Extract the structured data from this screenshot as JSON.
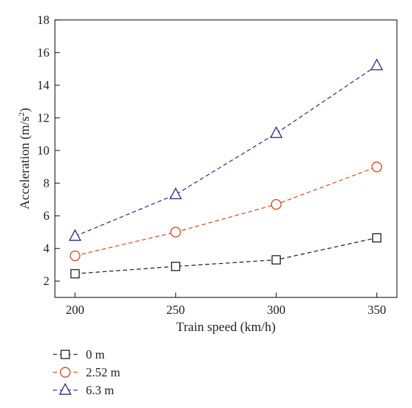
{
  "chart_data": {
    "type": "line",
    "xlabel": "Train speed (km/h)",
    "ylabel": {
      "main": "Acceleration (m/s",
      "sup": "2",
      "close": ")"
    },
    "x": [
      200,
      250,
      300,
      350
    ],
    "xlim": [
      190,
      360
    ],
    "ylim": [
      1,
      18
    ],
    "xticks": [
      200,
      250,
      300,
      350
    ],
    "yticks": [
      2,
      4,
      6,
      8,
      10,
      12,
      14,
      16,
      18
    ],
    "grid": false,
    "legend_position": "bottom-left, below plot",
    "series": [
      {
        "name": "0 m",
        "values": [
          2.45,
          2.9,
          3.3,
          4.65
        ],
        "color": "#231f20",
        "marker": "square",
        "line": "dashed"
      },
      {
        "name": "2.52 m",
        "values": [
          3.55,
          5.0,
          6.7,
          9.0
        ],
        "color": "#d4491e",
        "marker": "circle",
        "line": "dashed"
      },
      {
        "name": "6.3 m",
        "values": [
          4.75,
          7.3,
          11.05,
          15.2
        ],
        "color": "#2b2c8c",
        "marker": "triangle",
        "line": "dashed"
      }
    ]
  }
}
